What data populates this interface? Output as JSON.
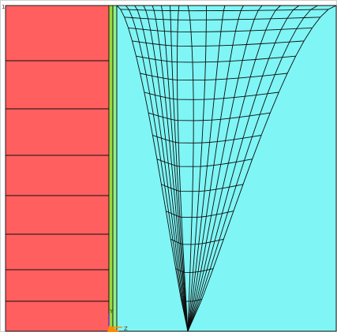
{
  "view": {
    "title": "",
    "colors": {
      "background": "#ffffff",
      "region_a": "#ff5f5f",
      "region_b_inner": "#9bd83c",
      "region_b_outer": "#8df28d",
      "region_c": "#7ff5f5",
      "mesh_line": "#0d0d0d",
      "triad_x": "#ff8c00",
      "triad_y": "#7d26cd"
    }
  },
  "triad": {
    "label_y": "Y",
    "label_z": "Z"
  },
  "corner_mark": "1"
}
